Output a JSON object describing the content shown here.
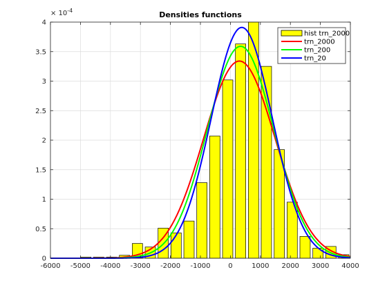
{
  "chart_data": {
    "type": "bar",
    "title": "Densities functions",
    "xlabel": "",
    "ylabel": "",
    "y_exponent_label": "× 10",
    "y_exponent_power": "-4",
    "xlim": [
      -6000,
      4000
    ],
    "ylim": [
      0,
      4
    ],
    "y_scale": 0.0001,
    "grid": true,
    "legend_position": "top-right",
    "x_ticks": [
      -6000,
      -5000,
      -4000,
      -3000,
      -2000,
      -1000,
      0,
      1000,
      2000,
      3000,
      4000
    ],
    "x_tick_labels": [
      "-6000",
      "-5000",
      "-4000",
      "-3000",
      "-2000",
      "-1000",
      "0",
      "1000",
      "2000",
      "3000",
      "4000"
    ],
    "y_ticks": [
      0,
      0.5,
      1,
      1.5,
      2,
      2.5,
      3,
      3.5,
      4
    ],
    "y_tick_labels": [
      "0",
      "0.5",
      "1",
      "1.5",
      "2",
      "2.5",
      "3",
      "3.5",
      "4"
    ],
    "histogram": {
      "name": "hist trn_2000",
      "color": "#ffff00",
      "edge_color": "#000000",
      "bin_width": 430,
      "bin_centers": [
        -5250,
        -4820,
        -4390,
        -3960,
        -3530,
        -3100,
        -2670,
        -2240,
        -1810,
        -1380,
        -950,
        -520,
        -90,
        340,
        770,
        1200,
        1630,
        2060,
        2490,
        2920,
        3350,
        3780
      ],
      "values": [
        0.0,
        0.02,
        0.02,
        0.02,
        0.05,
        0.25,
        0.19,
        0.51,
        0.43,
        0.63,
        1.28,
        2.07,
        3.02,
        3.63,
        4.0,
        3.25,
        1.84,
        0.95,
        0.37,
        0.17,
        0.2,
        0.06
      ]
    },
    "series": [
      {
        "name": "trn_2000",
        "color": "#ff0000",
        "mean": 300,
        "std": 1195,
        "peak": 3.34
      },
      {
        "name": "trn_200",
        "color": "#00ff00",
        "mean": 340,
        "std": 1110,
        "peak": 3.59
      },
      {
        "name": "trn_20",
        "color": "#0000ff",
        "mean": 380,
        "std": 1020,
        "peak": 3.91
      }
    ]
  }
}
